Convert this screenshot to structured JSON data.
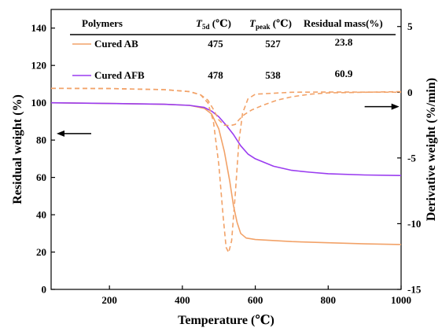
{
  "chart_data": {
    "type": "line",
    "x_axis": {
      "label": "Temperature (℃)",
      "range": [
        40,
        1000
      ],
      "ticks": [
        200,
        400,
        600,
        800,
        1000
      ],
      "tick_labels": [
        "200",
        "400",
        "600",
        "800",
        "1000"
      ]
    },
    "y_left": {
      "label": "Residual weight (%)",
      "range": [
        0,
        150
      ],
      "ticks": [
        0,
        20,
        40,
        60,
        80,
        100,
        120,
        140
      ],
      "tick_labels": [
        "0",
        "20",
        "40",
        "60",
        "80",
        "100",
        "120",
        "140"
      ]
    },
    "y_right": {
      "label": "Derivative weight (%/min)",
      "range": [
        -15,
        6.3
      ],
      "ticks": [
        -15,
        -10,
        -5,
        0,
        5
      ],
      "tick_labels": [
        "-15",
        "-10",
        "-5",
        "0",
        "5"
      ]
    },
    "series": [
      {
        "name": "Cured AB",
        "color": "#f2a268",
        "axis": "left",
        "style": "solid",
        "points": [
          [
            40,
            100
          ],
          [
            200,
            99.6
          ],
          [
            350,
            99.2
          ],
          [
            420,
            98.6
          ],
          [
            460,
            97
          ],
          [
            480,
            94
          ],
          [
            500,
            86
          ],
          [
            515,
            74
          ],
          [
            530,
            58
          ],
          [
            540,
            45
          ],
          [
            550,
            36
          ],
          [
            560,
            30
          ],
          [
            575,
            27.5
          ],
          [
            600,
            26.7
          ],
          [
            700,
            25.6
          ],
          [
            800,
            25
          ],
          [
            900,
            24.4
          ],
          [
            1000,
            24
          ]
        ]
      },
      {
        "name": "Cured AFB",
        "color": "#9a3cf0",
        "axis": "left",
        "style": "solid",
        "points": [
          [
            40,
            100
          ],
          [
            200,
            99.6
          ],
          [
            350,
            99.2
          ],
          [
            420,
            98.6
          ],
          [
            460,
            97.5
          ],
          [
            480,
            95.5
          ],
          [
            500,
            92.5
          ],
          [
            520,
            88
          ],
          [
            540,
            83
          ],
          [
            560,
            77
          ],
          [
            580,
            72.5
          ],
          [
            600,
            70
          ],
          [
            650,
            66
          ],
          [
            700,
            63.8
          ],
          [
            750,
            62.8
          ],
          [
            800,
            62
          ],
          [
            900,
            61.3
          ],
          [
            1000,
            61
          ]
        ]
      },
      {
        "name": "Cured AB",
        "color": "#f2a268",
        "axis": "right",
        "style": "dashed",
        "points": [
          [
            40,
            0.3
          ],
          [
            200,
            0.28
          ],
          [
            350,
            0.2
          ],
          [
            420,
            0.05
          ],
          [
            450,
            -0.2
          ],
          [
            470,
            -0.8
          ],
          [
            485,
            -2.2
          ],
          [
            500,
            -5.5
          ],
          [
            512,
            -9.5
          ],
          [
            520,
            -11.8
          ],
          [
            527,
            -12.2
          ],
          [
            535,
            -11.3
          ],
          [
            545,
            -7.8
          ],
          [
            555,
            -3.8
          ],
          [
            565,
            -1.6
          ],
          [
            580,
            -0.5
          ],
          [
            600,
            -0.15
          ],
          [
            700,
            0
          ],
          [
            800,
            0.02
          ],
          [
            1000,
            0
          ]
        ]
      },
      {
        "name": "Cured AFB",
        "color": "#f2a268",
        "axis": "right",
        "style": "dashed",
        "points": [
          [
            40,
            0.3
          ],
          [
            200,
            0.28
          ],
          [
            350,
            0.2
          ],
          [
            420,
            0.05
          ],
          [
            450,
            -0.2
          ],
          [
            470,
            -0.6
          ],
          [
            485,
            -1.3
          ],
          [
            500,
            -2.1
          ],
          [
            515,
            -2.5
          ],
          [
            530,
            -2.55
          ],
          [
            545,
            -2.45
          ],
          [
            555,
            -2.1
          ],
          [
            570,
            -1.7
          ],
          [
            590,
            -1.35
          ],
          [
            620,
            -1
          ],
          [
            660,
            -0.6
          ],
          [
            700,
            -0.35
          ],
          [
            750,
            -0.15
          ],
          [
            800,
            -0.05
          ],
          [
            1000,
            0.05
          ]
        ]
      }
    ],
    "arrows": [
      {
        "direction": "left",
        "axis": "left",
        "x_range": [
          150,
          55
        ],
        "y": 83.5
      },
      {
        "direction": "right",
        "axis": "right",
        "x_range": [
          900,
          995
        ],
        "y": -1.1
      }
    ],
    "legend_table": {
      "headers": [
        "Polymers",
        "T5d (℃)",
        "Tpeak (℃)",
        "Residual mass(%)"
      ],
      "rows": [
        {
          "name": "Cured AB",
          "t5d": "475",
          "tpeak": "527",
          "residual": "23.8",
          "color": "#f2a268"
        },
        {
          "name": "Cured AFB",
          "t5d": "478",
          "tpeak": "538",
          "residual": "60.9",
          "color": "#9a3cf0"
        }
      ]
    }
  }
}
